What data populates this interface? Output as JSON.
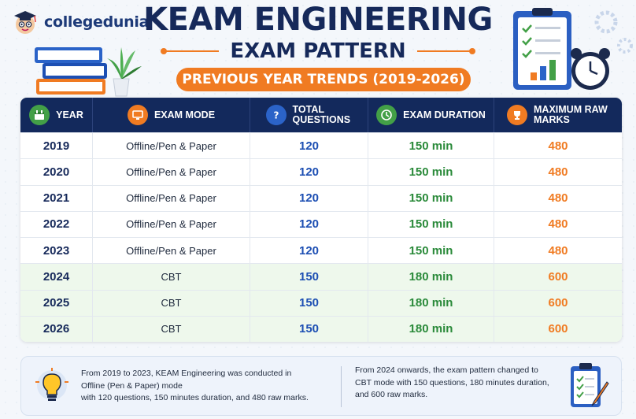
{
  "brand": {
    "name": "collegedunia"
  },
  "title": {
    "line1": "KEAM ENGINEERING",
    "line2": "EXAM PATTERN",
    "subtitle": "PREVIOUS YEAR TRENDS (2019-2026)"
  },
  "table": {
    "headers": {
      "year": "YEAR",
      "mode": "EXAM MODE",
      "questions": "TOTAL QUESTIONS",
      "duration": "EXAM DURATION",
      "marks": "MAXIMUM RAW MARKS"
    },
    "rows": [
      {
        "year": "2019",
        "mode": "Offline/Pen & Paper",
        "questions": "120",
        "duration": "150 min",
        "marks": "480"
      },
      {
        "year": "2020",
        "mode": "Offline/Pen & Paper",
        "questions": "120",
        "duration": "150 min",
        "marks": "480"
      },
      {
        "year": "2021",
        "mode": "Offline/Pen & Paper",
        "questions": "120",
        "duration": "150 min",
        "marks": "480"
      },
      {
        "year": "2022",
        "mode": "Offline/Pen & Paper",
        "questions": "120",
        "duration": "150 min",
        "marks": "480"
      },
      {
        "year": "2023",
        "mode": "Offline/Pen & Paper",
        "questions": "120",
        "duration": "150 min",
        "marks": "480"
      },
      {
        "year": "2024",
        "mode": "CBT",
        "questions": "150",
        "duration": "180 min",
        "marks": "600"
      },
      {
        "year": "2025",
        "mode": "CBT",
        "questions": "150",
        "duration": "180 min",
        "marks": "600"
      },
      {
        "year": "2026",
        "mode": "CBT",
        "questions": "150",
        "duration": "180 min",
        "marks": "600"
      }
    ]
  },
  "footer": {
    "left": {
      "line1": "From 2019 to 2023, KEAM Engineering was conducted in",
      "line2": "Offline (Pen & Paper) mode",
      "line3": "with 120 questions, 150 minutes duration, and 480 raw marks."
    },
    "right": {
      "line1": "From 2024 onwards, the exam pattern changed to",
      "line2": "CBT mode with 150 questions, 180 minutes duration,",
      "line3": "and 600 raw marks."
    }
  },
  "colors": {
    "navy": "#13295c",
    "orange": "#f07b22",
    "blue": "#1d4fb3",
    "green": "#2a8a3a",
    "cbt_row_bg": "#eef8ec"
  },
  "icons": {
    "year": "calendar-icon",
    "mode": "monitor-icon",
    "questions": "question-icon",
    "duration": "clock-icon",
    "marks": "trophy-icon",
    "footer_left": "lightbulb-icon",
    "footer_right": "clipboard-icon"
  }
}
